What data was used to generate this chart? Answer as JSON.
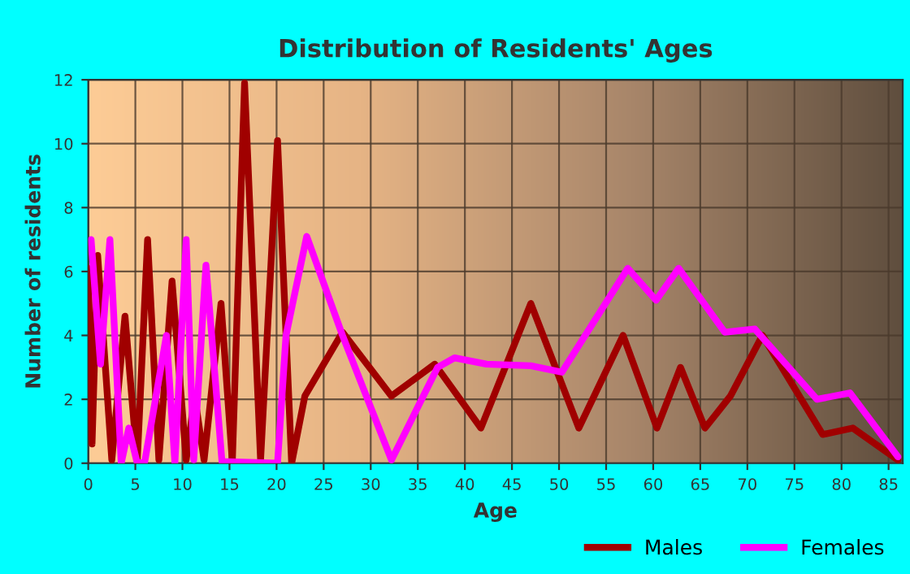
{
  "chart_data": {
    "type": "line",
    "title": "Distribution of Residents' Ages",
    "xlabel": "Age",
    "ylabel": "Number of residents",
    "xlim": [
      0,
      86.5
    ],
    "ylim": [
      0,
      12
    ],
    "xticks": [
      0,
      5,
      10,
      15,
      20,
      25,
      30,
      35,
      40,
      45,
      50,
      55,
      60,
      65,
      70,
      75,
      80,
      85
    ],
    "yticks": [
      0,
      2,
      4,
      6,
      8,
      10,
      12
    ],
    "grid": true,
    "legend": "bottom right",
    "marker": "none",
    "line_style": "solid",
    "series": [
      {
        "name": "Males",
        "color": "#a00000",
        "x": [
          0,
          0.4,
          1.0,
          2.5,
          3.9,
          5.2,
          6.3,
          7.5,
          8.9,
          10.4,
          11.3,
          12.3,
          14.1,
          15.3,
          16.6,
          18.3,
          20.1,
          21.6,
          23.0,
          27.0,
          32.2,
          36.8,
          41.7,
          47.0,
          52.1,
          56.8,
          60.4,
          62.9,
          65.5,
          68.2,
          71.6,
          78.0,
          81.2,
          86.0
        ],
        "values": [
          6.1,
          0.6,
          6.5,
          0.1,
          4.6,
          0.05,
          7.0,
          0.1,
          5.7,
          0.1,
          2.1,
          0.1,
          5.0,
          0.05,
          11.9,
          0.1,
          10.1,
          0,
          2.1,
          4.1,
          2.1,
          3.1,
          1.1,
          5.0,
          1.1,
          4.0,
          1.1,
          3.0,
          1.1,
          2.1,
          4.0,
          0.9,
          1.1,
          0.1
        ]
      },
      {
        "name": "Females",
        "color": "#ff00ff",
        "x": [
          0.3,
          1.3,
          2.3,
          3.5,
          4.3,
          5.2,
          6.0,
          8.3,
          9.2,
          10.4,
          11.2,
          12.5,
          14.2,
          20.1,
          21.0,
          23.2,
          27.0,
          32.2,
          37.1,
          38.9,
          42.3,
          47.0,
          50.3,
          57.3,
          60.3,
          62.7,
          67.6,
          70.8,
          77.4,
          80.9,
          86.0
        ],
        "values": [
          7.0,
          3.1,
          7.0,
          0,
          1.1,
          0,
          0.05,
          4.0,
          0,
          7.0,
          0.1,
          6.2,
          0.05,
          0,
          4.0,
          7.1,
          4.0,
          0.1,
          3.0,
          3.3,
          3.1,
          3.05,
          2.85,
          6.1,
          5.1,
          6.1,
          4.1,
          4.2,
          2.0,
          2.2,
          0.2
        ]
      }
    ]
  }
}
